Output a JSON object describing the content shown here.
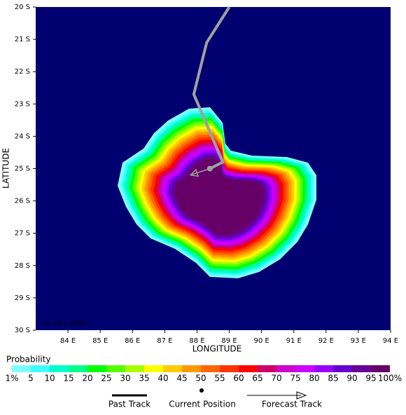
{
  "map": {
    "xaxis_label": "LONGITUDE",
    "yaxis_label": "LATITUDE",
    "xlim": [
      83,
      94
    ],
    "ylim": [
      20,
      30
    ],
    "xticks": [
      {
        "value": 84,
        "label": "84 E"
      },
      {
        "value": 85,
        "label": "85 E"
      },
      {
        "value": 86,
        "label": "86 E"
      },
      {
        "value": 87,
        "label": "87 E"
      },
      {
        "value": 88,
        "label": "88 E"
      },
      {
        "value": 89,
        "label": "89 E"
      },
      {
        "value": 90,
        "label": "90 E"
      },
      {
        "value": 91,
        "label": "91 E"
      },
      {
        "value": 92,
        "label": "92 E"
      },
      {
        "value": 93,
        "label": "93 E"
      },
      {
        "value": 94,
        "label": "94 E"
      }
    ],
    "yticks": [
      {
        "value": 20,
        "label": "20 S"
      },
      {
        "value": 21,
        "label": "21 S"
      },
      {
        "value": 22,
        "label": "22 S"
      },
      {
        "value": 23,
        "label": "23 S"
      },
      {
        "value": 24,
        "label": "24 S"
      },
      {
        "value": 25,
        "label": "25 S"
      },
      {
        "value": 26,
        "label": "26 S"
      },
      {
        "value": 27,
        "label": "27 S"
      },
      {
        "value": 28,
        "label": "28 S"
      },
      {
        "value": 29,
        "label": "29 S"
      },
      {
        "value": 30,
        "label": "30 S"
      }
    ],
    "background": "#000070",
    "copyright": "© UCL 2025",
    "past_track": {
      "lon": [
        89.0,
        88.3,
        87.9,
        88.8,
        88.4
      ],
      "lat": [
        20.0,
        21.1,
        22.7,
        24.8,
        25.0
      ],
      "color": "#a0a0a0"
    },
    "current_position": {
      "lon": 88.4,
      "lat": 25.0
    },
    "forecast_track": {
      "lon": [
        88.4,
        87.8
      ],
      "lat": [
        25.0,
        25.2
      ],
      "color": "#a0a0a0"
    }
  },
  "colorbar": {
    "title": "Probability",
    "levels": [
      {
        "value": 1,
        "label": "1%"
      },
      5,
      10,
      15,
      20,
      25,
      30,
      35,
      40,
      45,
      50,
      55,
      60,
      65,
      70,
      75,
      80,
      85,
      90,
      95,
      {
        "value": 100,
        "label": "100%"
      }
    ],
    "colors": [
      "#80ffff",
      "#40ffff",
      "#00ffcc",
      "#00ff88",
      "#00ff00",
      "#55ff00",
      "#aaff00",
      "#ffff00",
      "#ffcc00",
      "#ff9900",
      "#ff6600",
      "#ff3300",
      "#ff0000",
      "#cc0066",
      "#cc00cc",
      "#cc00ff",
      "#9900ff",
      "#6600cc",
      "#660099",
      "#660066"
    ]
  },
  "legend": {
    "past_track": "Past Track",
    "current_position": "Current Position",
    "forecast_track": "Forecast Track"
  }
}
